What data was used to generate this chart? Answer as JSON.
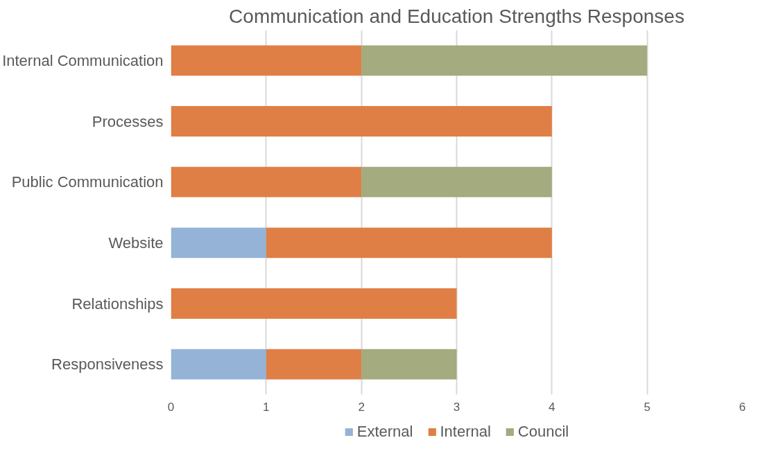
{
  "chart_data": {
    "type": "bar",
    "title": "Communication and Education Strengths Responses",
    "orientation": "horizontal",
    "stacked": true,
    "categories": [
      "Internal Communication",
      "Processes",
      "Public Communication",
      "Website",
      "Relationships",
      "Responsiveness"
    ],
    "series": [
      {
        "name": "External",
        "color": "#95b3d7",
        "values": [
          0,
          0,
          0,
          1,
          0,
          1
        ]
      },
      {
        "name": "Internal",
        "color": "#e07f45",
        "values": [
          2,
          4,
          2,
          3,
          3,
          1
        ]
      },
      {
        "name": "Council",
        "color": "#a3ab7f",
        "values": [
          3,
          0,
          2,
          0,
          0,
          1
        ]
      }
    ],
    "xlim": [
      0,
      6
    ],
    "xticks": [
      0,
      1,
      2,
      3,
      4,
      5,
      6
    ],
    "grid": "x",
    "legend": "bottom"
  }
}
